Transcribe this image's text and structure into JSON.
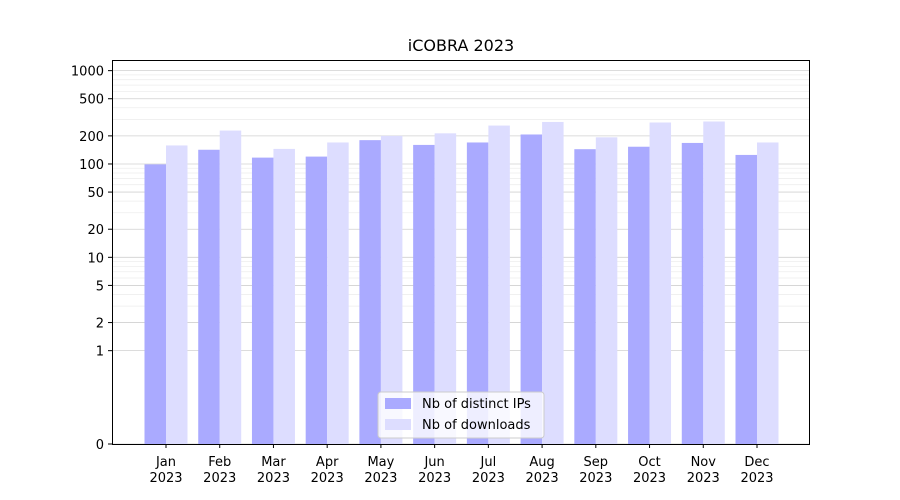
{
  "chart_data": {
    "type": "bar",
    "title": "iCOBRA 2023",
    "xlabel": "",
    "ylabel": "",
    "yscale": "symlog",
    "ylim": [
      0,
      1300
    ],
    "yticks": [
      0,
      1,
      2,
      5,
      10,
      20,
      50,
      100,
      200,
      500,
      1000
    ],
    "grid": "horizontal",
    "legend_position": "bottom-center",
    "categories": [
      "Jan\n2023",
      "Feb\n2023",
      "Mar\n2023",
      "Apr\n2023",
      "May\n2023",
      "Jun\n2023",
      "Jul\n2023",
      "Aug\n2023",
      "Sep\n2023",
      "Oct\n2023",
      "Nov\n2023",
      "Dec\n2023"
    ],
    "series": [
      {
        "name": "Nb of distinct IPs",
        "color": "#aaaaff",
        "values": [
          99,
          142,
          117,
          120,
          180,
          160,
          170,
          207,
          144,
          153,
          168,
          125
        ]
      },
      {
        "name": "Nb of downloads",
        "color": "#ddddff",
        "values": [
          158,
          228,
          145,
          170,
          200,
          213,
          258,
          282,
          193,
          278,
          285,
          170
        ]
      }
    ]
  }
}
